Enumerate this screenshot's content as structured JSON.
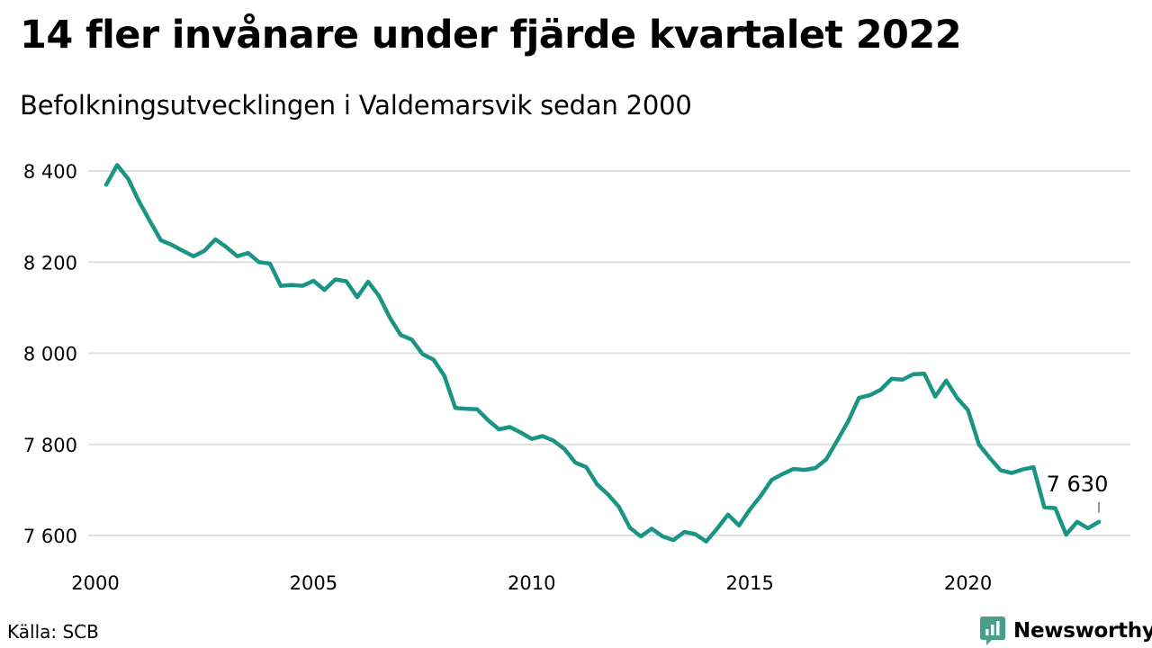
{
  "title": "14 fler invånare under fjärde kvartalet 2022",
  "subtitle": "Befolkningsutvecklingen i Valdemarsvik sedan 2000",
  "source": "Källa: SCB",
  "brand": {
    "name": "Newsworthy",
    "icon": "newsworthy-chart-bubble-icon",
    "color": "#4a9f8c"
  },
  "chart_data": {
    "type": "line",
    "title": "14 fler invånare under fjärde kvartalet 2022",
    "subtitle": "Befolkningsutvecklingen i Valdemarsvik sedan 2000",
    "xlabel": "",
    "ylabel": "",
    "xlim": [
      2000,
      2023
    ],
    "ylim": [
      7580,
      8420
    ],
    "x_ticks": [
      2000,
      2005,
      2010,
      2015,
      2020
    ],
    "x_tick_labels": [
      "2000",
      "2005",
      "2010",
      "2015",
      "2020"
    ],
    "y_ticks": [
      7600,
      7800,
      8000,
      8200,
      8400
    ],
    "y_tick_labels": [
      "7 600",
      "7 800",
      "8 000",
      "8 200",
      "8 400"
    ],
    "grid": "horizontal",
    "legend": "none",
    "line_color": "#1a9585",
    "grid_color": "#e0e0e0",
    "end_label": "7 630",
    "series": [
      {
        "x": [
          2000.25,
          2000.5,
          2000.75,
          2001.0,
          2001.25,
          2001.5,
          2001.75,
          2002.0,
          2002.25,
          2002.5,
          2002.75,
          2003.0,
          2003.25,
          2003.5,
          2003.75,
          2004.0,
          2004.25,
          2004.5,
          2004.75,
          2005.0,
          2005.25,
          2005.5,
          2005.75,
          2006.0,
          2006.25,
          2006.5,
          2006.75,
          2007.0,
          2007.25,
          2007.5,
          2007.75,
          2008.0,
          2008.25,
          2008.5,
          2008.75,
          2009.0,
          2009.25,
          2009.5,
          2009.75,
          2010.0,
          2010.25,
          2010.5,
          2010.75,
          2011.0,
          2011.25,
          2011.5,
          2011.75,
          2012.0,
          2012.25,
          2012.5,
          2012.75,
          2013.0,
          2013.25,
          2013.5,
          2013.75,
          2014.0,
          2014.25,
          2014.5,
          2014.75,
          2015.0,
          2015.25,
          2015.5,
          2015.75,
          2016.0,
          2016.25,
          2016.5,
          2016.75,
          2017.0,
          2017.25,
          2017.5,
          2017.75,
          2018.0,
          2018.25,
          2018.5,
          2018.75,
          2019.0,
          2019.25,
          2019.5,
          2019.75,
          2020.0,
          2020.25,
          2020.5,
          2020.75,
          2021.0,
          2021.25,
          2021.5,
          2021.75,
          2022.0,
          2022.25,
          2022.5,
          2022.75,
          2023.0
        ],
        "values": [
          8370,
          8413,
          8383,
          8333,
          8290,
          8248,
          8238,
          8225,
          8213,
          8225,
          8250,
          8233,
          8213,
          8220,
          8200,
          8197,
          8148,
          8150,
          8148,
          8159,
          8139,
          8162,
          8158,
          8123,
          8157,
          8126,
          8078,
          8040,
          8030,
          7998,
          7986,
          7950,
          7880,
          7878,
          7877,
          7853,
          7833,
          7838,
          7826,
          7812,
          7818,
          7808,
          7790,
          7760,
          7750,
          7712,
          7690,
          7663,
          7617,
          7598,
          7615,
          7598,
          7590,
          7608,
          7603,
          7587,
          7615,
          7646,
          7622,
          7657,
          7687,
          7722,
          7735,
          7746,
          7744,
          7748,
          7767,
          7808,
          7850,
          7902,
          7908,
          7920,
          7944,
          7942,
          7954,
          7955,
          7905,
          7940,
          7902,
          7875,
          7800,
          7770,
          7743,
          7737,
          7745,
          7750,
          7662,
          7660,
          7602,
          7630,
          7616,
          7630
        ]
      }
    ]
  }
}
